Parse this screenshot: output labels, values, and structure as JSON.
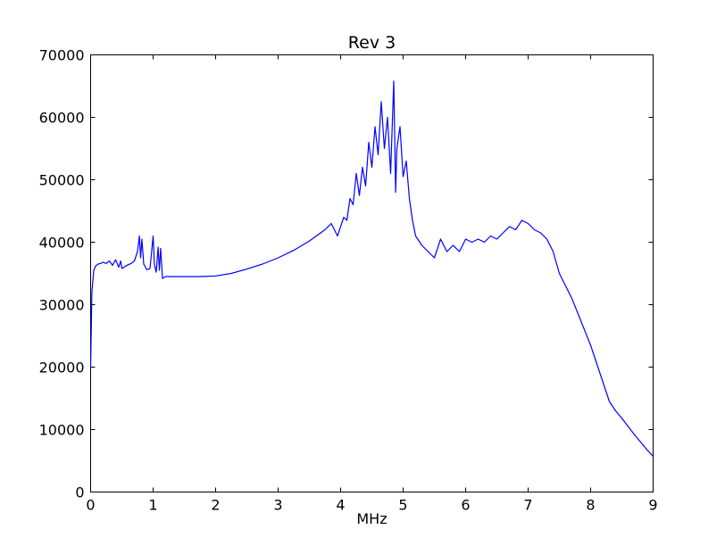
{
  "chart_data": {
    "type": "line",
    "title": "Rev 3",
    "xlabel": "MHz",
    "ylabel": "",
    "xlim": [
      0,
      9
    ],
    "ylim": [
      0,
      70000
    ],
    "xticks": [
      0,
      1,
      2,
      3,
      4,
      5,
      6,
      7,
      8,
      9
    ],
    "xtick_labels": [
      "0",
      "1",
      "2",
      "3",
      "4",
      "5",
      "6",
      "7",
      "8",
      "9"
    ],
    "yticks": [
      0,
      10000,
      20000,
      30000,
      40000,
      50000,
      60000,
      70000
    ],
    "ytick_labels": [
      "0",
      "10000",
      "20000",
      "30000",
      "40000",
      "50000",
      "60000",
      "70000"
    ],
    "grid": false,
    "line_color": "#0000ff",
    "series": [
      {
        "name": "",
        "x": [
          0,
          0.02,
          0.05,
          0.08,
          0.12,
          0.16,
          0.2,
          0.25,
          0.3,
          0.35,
          0.4,
          0.45,
          0.48,
          0.5,
          0.55,
          0.6,
          0.65,
          0.7,
          0.75,
          0.78,
          0.8,
          0.82,
          0.85,
          0.9,
          0.95,
          1.0,
          1.02,
          1.05,
          1.08,
          1.1,
          1.12,
          1.15,
          1.2,
          1.3,
          1.5,
          1.75,
          2.0,
          2.25,
          2.5,
          2.75,
          3.0,
          3.25,
          3.5,
          3.75,
          3.85,
          3.95,
          4.05,
          4.1,
          4.15,
          4.2,
          4.25,
          4.3,
          4.35,
          4.4,
          4.45,
          4.5,
          4.55,
          4.6,
          4.65,
          4.7,
          4.75,
          4.8,
          4.85,
          4.88,
          4.9,
          4.95,
          5.0,
          5.05,
          5.1,
          5.15,
          5.2,
          5.3,
          5.4,
          5.5,
          5.6,
          5.7,
          5.8,
          5.9,
          6.0,
          6.1,
          6.2,
          6.3,
          6.4,
          6.5,
          6.6,
          6.7,
          6.8,
          6.9,
          7.0,
          7.1,
          7.2,
          7.3,
          7.4,
          7.5,
          7.55,
          7.6,
          7.7,
          7.8,
          7.9,
          8.0,
          8.1,
          8.2,
          8.3,
          8.4,
          8.5,
          8.6,
          8.7,
          8.8,
          8.9,
          9.0
        ],
        "y": [
          20000,
          32000,
          35500,
          36200,
          36500,
          36600,
          36800,
          36600,
          37000,
          36300,
          37200,
          36000,
          37000,
          35800,
          36100,
          36400,
          36600,
          37000,
          38500,
          41000,
          37500,
          40500,
          36500,
          35600,
          35800,
          41000,
          36500,
          35200,
          39200,
          35500,
          39000,
          34200,
          34500,
          34500,
          34500,
          34500,
          34600,
          35000,
          35700,
          36500,
          37500,
          38700,
          40200,
          42000,
          43000,
          41000,
          44000,
          43500,
          47000,
          46000,
          51000,
          47500,
          52000,
          49000,
          56000,
          52000,
          58500,
          54000,
          62500,
          55000,
          60000,
          51000,
          65800,
          48000,
          55000,
          58500,
          50500,
          53000,
          47000,
          43500,
          41000,
          39500,
          38500,
          37500,
          40500,
          38500,
          39500,
          38500,
          40500,
          40000,
          40500,
          40000,
          41000,
          40500,
          41500,
          42500,
          42000,
          43500,
          43000,
          42000,
          41500,
          40500,
          38500,
          35000,
          34000,
          33000,
          31000,
          28500,
          26000,
          23500,
          20500,
          17500,
          14500,
          13000,
          11800,
          10500,
          9200,
          8000,
          6800,
          5700
        ]
      }
    ]
  }
}
